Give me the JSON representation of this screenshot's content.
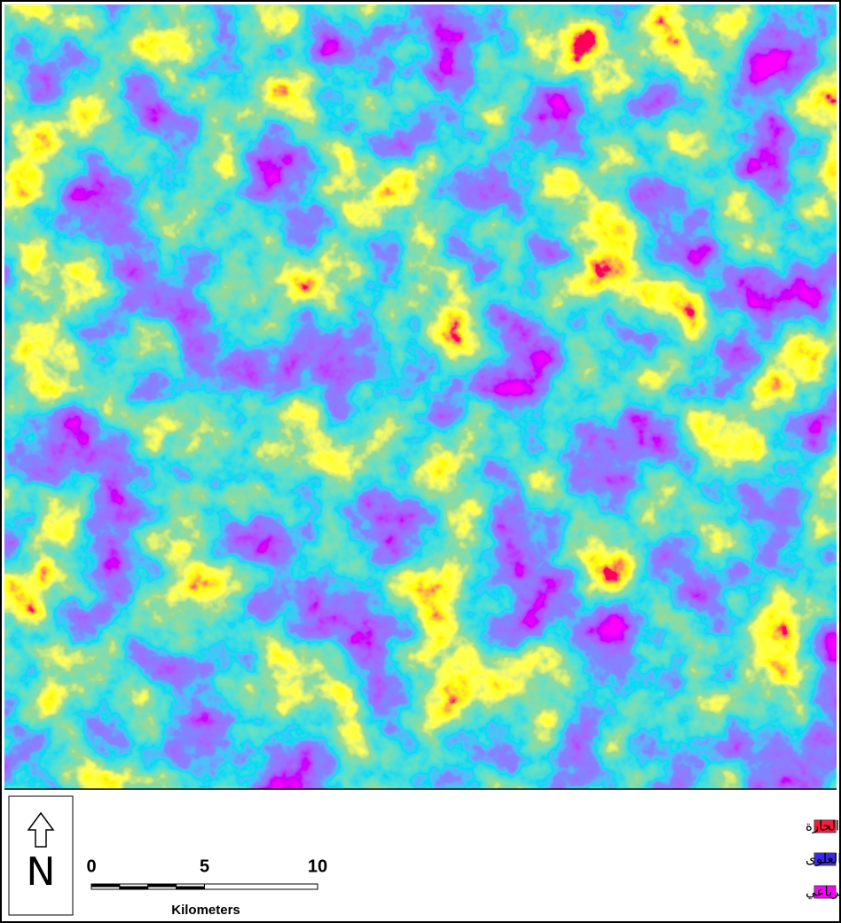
{
  "north_arrow": {
    "label": "N"
  },
  "scale_bar": {
    "ticks": [
      0,
      5,
      10
    ],
    "unit": "Kilometers"
  },
  "legend": {
    "items": [
      {
        "label": "المناطق المتأثرة بالمحاليل الحارة",
        "color": "#ff1a3a"
      },
      {
        "label": "صخور الكريتاسى العلوى",
        "color": "#3a28f0"
      },
      {
        "label": "رسوبيات العصر الرباعي",
        "color": "#ff00ff"
      }
    ]
  }
}
